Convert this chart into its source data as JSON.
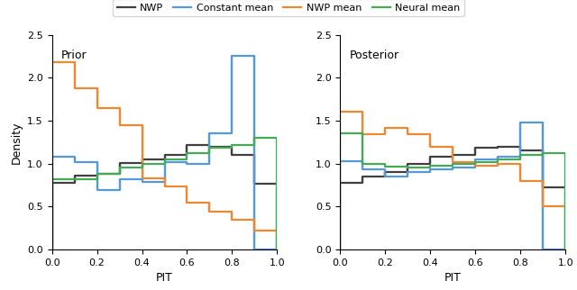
{
  "prior_nwp": [
    0.78,
    0.86,
    0.88,
    1.01,
    1.05,
    1.1,
    1.22,
    1.2,
    1.1,
    0.77
  ],
  "prior_const_mean": [
    1.08,
    1.02,
    0.69,
    0.82,
    0.79,
    1.02,
    1.0,
    1.35,
    2.25,
    0.0
  ],
  "prior_nwp_mean": [
    2.18,
    1.88,
    1.65,
    1.45,
    0.83,
    0.73,
    0.54,
    0.44,
    0.35,
    0.22
  ],
  "prior_neural_mean": [
    0.82,
    0.82,
    0.88,
    0.95,
    1.0,
    1.05,
    1.12,
    1.18,
    1.22,
    1.3
  ],
  "post_nwp": [
    0.78,
    0.85,
    0.9,
    1.0,
    1.08,
    1.1,
    1.18,
    1.2,
    1.15,
    0.72
  ],
  "post_const_mean": [
    1.03,
    0.93,
    0.85,
    0.9,
    0.93,
    0.95,
    1.05,
    1.08,
    1.48,
    0.0
  ],
  "post_nwp_mean": [
    1.6,
    1.34,
    1.42,
    1.34,
    1.2,
    1.02,
    0.98,
    1.0,
    0.8,
    0.5
  ],
  "post_neural_mean": [
    1.35,
    1.0,
    0.96,
    0.95,
    0.98,
    1.0,
    1.02,
    1.05,
    1.1,
    1.12
  ],
  "bins": [
    0.0,
    0.1,
    0.2,
    0.3,
    0.4,
    0.5,
    0.6,
    0.7,
    0.8,
    0.9,
    1.0
  ],
  "color_nwp": "#404040",
  "color_const_mean": "#5599dd",
  "color_nwp_mean": "#ee8833",
  "color_neural_mean": "#44aa55",
  "label_nwp": "NWP",
  "label_const_mean": "Constant mean",
  "label_nwp_mean": "NWP mean",
  "label_neural_mean": "Neural mean",
  "title_left": "Prior",
  "title_right": "Posterior",
  "xlabel": "PIT",
  "ylabel": "Density",
  "ylim": [
    0.0,
    2.5
  ],
  "xlim": [
    0.0,
    1.0
  ]
}
